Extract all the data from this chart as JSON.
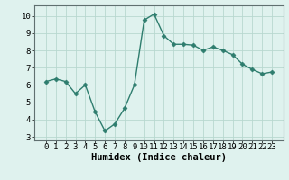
{
  "x": [
    0,
    1,
    2,
    3,
    4,
    5,
    6,
    7,
    8,
    9,
    10,
    11,
    12,
    13,
    14,
    15,
    16,
    17,
    18,
    19,
    20,
    21,
    22,
    23
  ],
  "y": [
    6.2,
    6.35,
    6.2,
    5.5,
    6.0,
    4.45,
    3.35,
    3.75,
    4.65,
    6.0,
    9.75,
    10.1,
    8.85,
    8.35,
    8.35,
    8.3,
    8.0,
    8.2,
    8.0,
    7.75,
    7.2,
    6.9,
    6.65,
    6.75
  ],
  "line_color": "#2e7d6e",
  "marker": "D",
  "markersize": 2.5,
  "linewidth": 1.0,
  "bg_color": "#dff2ee",
  "grid_color": "#b8d8d0",
  "xlabel": "Humidex (Indice chaleur)",
  "ylabel": "",
  "ylim": [
    2.8,
    10.6
  ],
  "yticks": [
    3,
    4,
    5,
    6,
    7,
    8,
    9,
    10
  ],
  "xticks": [
    0,
    1,
    2,
    3,
    4,
    5,
    6,
    7,
    8,
    9,
    10,
    11,
    12,
    13,
    14,
    15,
    16,
    17,
    18,
    19,
    20,
    21,
    22,
    23
  ],
  "xlabel_fontsize": 7.5,
  "tick_fontsize": 6.5
}
